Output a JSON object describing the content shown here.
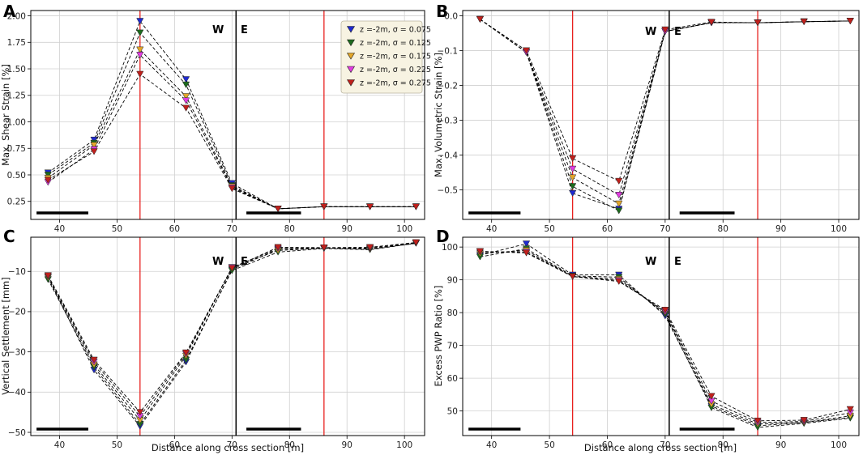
{
  "figure": {
    "xlabel": "Distance along cross section [m]",
    "wall_labels": {
      "west": "W",
      "east": "E"
    },
    "colors": {
      "red_line": "#e8201e",
      "wall_line": "#000000",
      "grid": "#d0d0d0",
      "legend_bg": "#f7f3e2"
    },
    "legend": [
      {
        "label": "z =-2m, σ = 0.075",
        "color": "#1f2ad0"
      },
      {
        "label": "z =-2m, σ = 0.125",
        "color": "#1e6b1e"
      },
      {
        "label": "z =-2m, σ = 0.175",
        "color": "#e3a72a"
      },
      {
        "label": "z =-2m, σ = 0.225",
        "color": "#e23ce2"
      },
      {
        "label": "z =-2m, σ = 0.275",
        "color": "#c0201c"
      }
    ]
  },
  "chart_data": [
    {
      "panel": "A",
      "type": "line",
      "ylabel": "Max. Shear Strain [%]",
      "xlim": [
        35,
        103.5
      ],
      "ylim": [
        0.08,
        2.05
      ],
      "yticks": [
        0.25,
        0.5,
        0.75,
        1.0,
        1.25,
        1.5,
        1.75,
        2.0
      ],
      "ytick_labels": [
        "0.25",
        "0.50",
        "0.75",
        "1.00",
        "1.25",
        "1.50",
        "1.75",
        "2.00"
      ],
      "xticks": [
        40,
        50,
        60,
        70,
        80,
        90,
        100
      ],
      "xtick_labels": [
        "40",
        "50",
        "60",
        "70",
        "80",
        "90",
        "100"
      ],
      "vlines_red": [
        54,
        86
      ],
      "vline_wall": 70.7,
      "scale_bars": [
        [
          36,
          45
        ],
        [
          72.5,
          82
        ]
      ],
      "x": [
        38,
        46,
        54,
        62,
        70,
        78,
        86,
        94,
        102
      ],
      "series": [
        {
          "name": "z =-2m, σ = 0.075",
          "values": [
            0.52,
            0.83,
            1.95,
            1.4,
            0.42,
            0.18,
            0.2,
            0.2,
            0.2
          ]
        },
        {
          "name": "z =-2m, σ = 0.125",
          "values": [
            0.5,
            0.8,
            1.84,
            1.35,
            0.4,
            0.18,
            0.2,
            0.2,
            0.2
          ]
        },
        {
          "name": "z =-2m, σ = 0.175",
          "values": [
            0.47,
            0.78,
            1.68,
            1.24,
            0.39,
            0.18,
            0.2,
            0.2,
            0.2
          ]
        },
        {
          "name": "z =-2m, σ = 0.225",
          "values": [
            0.43,
            0.74,
            1.63,
            1.2,
            0.38,
            0.18,
            0.2,
            0.2,
            0.2
          ]
        },
        {
          "name": "z =-2m, σ = 0.275",
          "values": [
            0.45,
            0.72,
            1.45,
            1.13,
            0.37,
            0.18,
            0.2,
            0.2,
            0.2
          ]
        }
      ]
    },
    {
      "panel": "B",
      "type": "line",
      "ylabel": "Max. Volumetric Strain [%]",
      "xlim": [
        35,
        103.5
      ],
      "ylim": [
        -0.585,
        0.015
      ],
      "yticks": [
        0.0,
        -0.1,
        -0.2,
        -0.3,
        -0.4,
        -0.5
      ],
      "ytick_labels": [
        "0.0",
        "−0.1",
        "−0.2",
        "−0.3",
        "−0.4",
        "−0.5"
      ],
      "xticks": [
        40,
        50,
        60,
        70,
        80,
        90,
        100
      ],
      "xtick_labels": [
        "40",
        "50",
        "60",
        "70",
        "80",
        "90",
        "100"
      ],
      "vlines_red": [
        54,
        86
      ],
      "vline_wall": 70.7,
      "scale_bars": [
        [
          36,
          45
        ],
        [
          72.5,
          82
        ]
      ],
      "x": [
        38,
        46,
        54,
        62,
        70,
        78,
        86,
        94,
        102
      ],
      "series": [
        {
          "name": "z =-2m, σ = 0.075",
          "values": [
            -0.01,
            -0.105,
            -0.51,
            -0.555,
            -0.045,
            -0.02,
            -0.02,
            -0.017,
            -0.015
          ]
        },
        {
          "name": "z =-2m, σ = 0.125",
          "values": [
            -0.01,
            -0.105,
            -0.49,
            -0.56,
            -0.045,
            -0.02,
            -0.02,
            -0.017,
            -0.015
          ]
        },
        {
          "name": "z =-2m, σ = 0.175",
          "values": [
            -0.01,
            -0.105,
            -0.465,
            -0.54,
            -0.045,
            -0.02,
            -0.02,
            -0.017,
            -0.015
          ]
        },
        {
          "name": "z =-2m, σ = 0.225",
          "values": [
            -0.01,
            -0.105,
            -0.44,
            -0.515,
            -0.045,
            -0.02,
            -0.02,
            -0.017,
            -0.015
          ]
        },
        {
          "name": "z =-2m, σ = 0.275",
          "values": [
            -0.01,
            -0.1,
            -0.41,
            -0.475,
            -0.04,
            -0.018,
            -0.02,
            -0.017,
            -0.015
          ]
        }
      ]
    },
    {
      "panel": "C",
      "type": "line",
      "ylabel": "Vertical Settlement [mm]",
      "xlabel": "Distance along cross section [m]",
      "xlim": [
        35,
        103.5
      ],
      "ylim": [
        -50.8,
        -1.5
      ],
      "yticks": [
        -10,
        -20,
        -30,
        -40,
        -50
      ],
      "ytick_labels": [
        "−10",
        "−20",
        "−30",
        "−40",
        "−50"
      ],
      "xticks": [
        40,
        50,
        60,
        70,
        80,
        90,
        100
      ],
      "xtick_labels": [
        "40",
        "50",
        "60",
        "70",
        "80",
        "90",
        "100"
      ],
      "vlines_red": [
        54,
        86
      ],
      "vline_wall": 70.7,
      "scale_bars": [
        [
          36,
          45
        ],
        [
          72.5,
          82
        ]
      ],
      "x": [
        38,
        46,
        54,
        62,
        70,
        78,
        86,
        94,
        102
      ],
      "series": [
        {
          "name": "z =-2m, σ = 0.075",
          "values": [
            -11.5,
            -34.5,
            -48.5,
            -32.5,
            -9.5,
            -4.5,
            -4.2,
            -4.5,
            -3.0
          ]
        },
        {
          "name": "z =-2m, σ = 0.125",
          "values": [
            -12.0,
            -33.8,
            -48.0,
            -32.0,
            -9.8,
            -5.2,
            -4.3,
            -4.6,
            -3.0
          ]
        },
        {
          "name": "z =-2m, σ = 0.175",
          "values": [
            -11.5,
            -33.2,
            -47.0,
            -31.0,
            -9.0,
            -4.8,
            -4.2,
            -4.4,
            -2.9
          ]
        },
        {
          "name": "z =-2m, σ = 0.225",
          "values": [
            -11.2,
            -32.5,
            -46.0,
            -30.5,
            -9.0,
            -4.3,
            -4.2,
            -4.2,
            -2.9
          ]
        },
        {
          "name": "z =-2m, σ = 0.275",
          "values": [
            -11.0,
            -32.0,
            -45.0,
            -30.2,
            -9.2,
            -4.0,
            -4.1,
            -4.0,
            -2.8
          ]
        }
      ]
    },
    {
      "panel": "D",
      "type": "line",
      "ylabel": "Excess PWP Ratio [%]",
      "xlabel": "Distance along cross section [m]",
      "xlim": [
        35,
        103.5
      ],
      "ylim": [
        42.5,
        103
      ],
      "yticks": [
        50,
        60,
        70,
        80,
        90,
        100
      ],
      "ytick_labels": [
        "50",
        "60",
        "70",
        "80",
        "90",
        "100"
      ],
      "xticks": [
        40,
        50,
        60,
        70,
        80,
        90,
        100
      ],
      "xtick_labels": [
        "40",
        "50",
        "60",
        "70",
        "80",
        "90",
        "100"
      ],
      "vlines_red": [
        54,
        86
      ],
      "vline_wall": 70.7,
      "scale_bars": [
        [
          36,
          45
        ],
        [
          72.5,
          82
        ]
      ],
      "x": [
        38,
        46,
        54,
        62,
        70,
        78,
        86,
        94,
        102
      ],
      "series": [
        {
          "name": "z =-2m, σ = 0.075",
          "values": [
            97.5,
            101.0,
            91.5,
            91.5,
            79.0,
            51.5,
            45.5,
            46.5,
            48.0
          ]
        },
        {
          "name": "z =-2m, σ = 0.125",
          "values": [
            97.0,
            99.5,
            91.2,
            90.8,
            79.5,
            51.0,
            45.0,
            46.2,
            47.8
          ]
        },
        {
          "name": "z =-2m, σ = 0.175",
          "values": [
            98.0,
            99.0,
            91.0,
            90.2,
            80.0,
            52.0,
            46.0,
            46.5,
            48.5
          ]
        },
        {
          "name": "z =-2m, σ = 0.225",
          "values": [
            98.5,
            98.5,
            91.0,
            89.8,
            80.3,
            53.0,
            46.5,
            46.8,
            49.5
          ]
        },
        {
          "name": "z =-2m, σ = 0.275",
          "values": [
            98.7,
            98.2,
            91.0,
            89.5,
            80.8,
            54.5,
            47.0,
            47.2,
            50.5
          ]
        }
      ]
    }
  ]
}
